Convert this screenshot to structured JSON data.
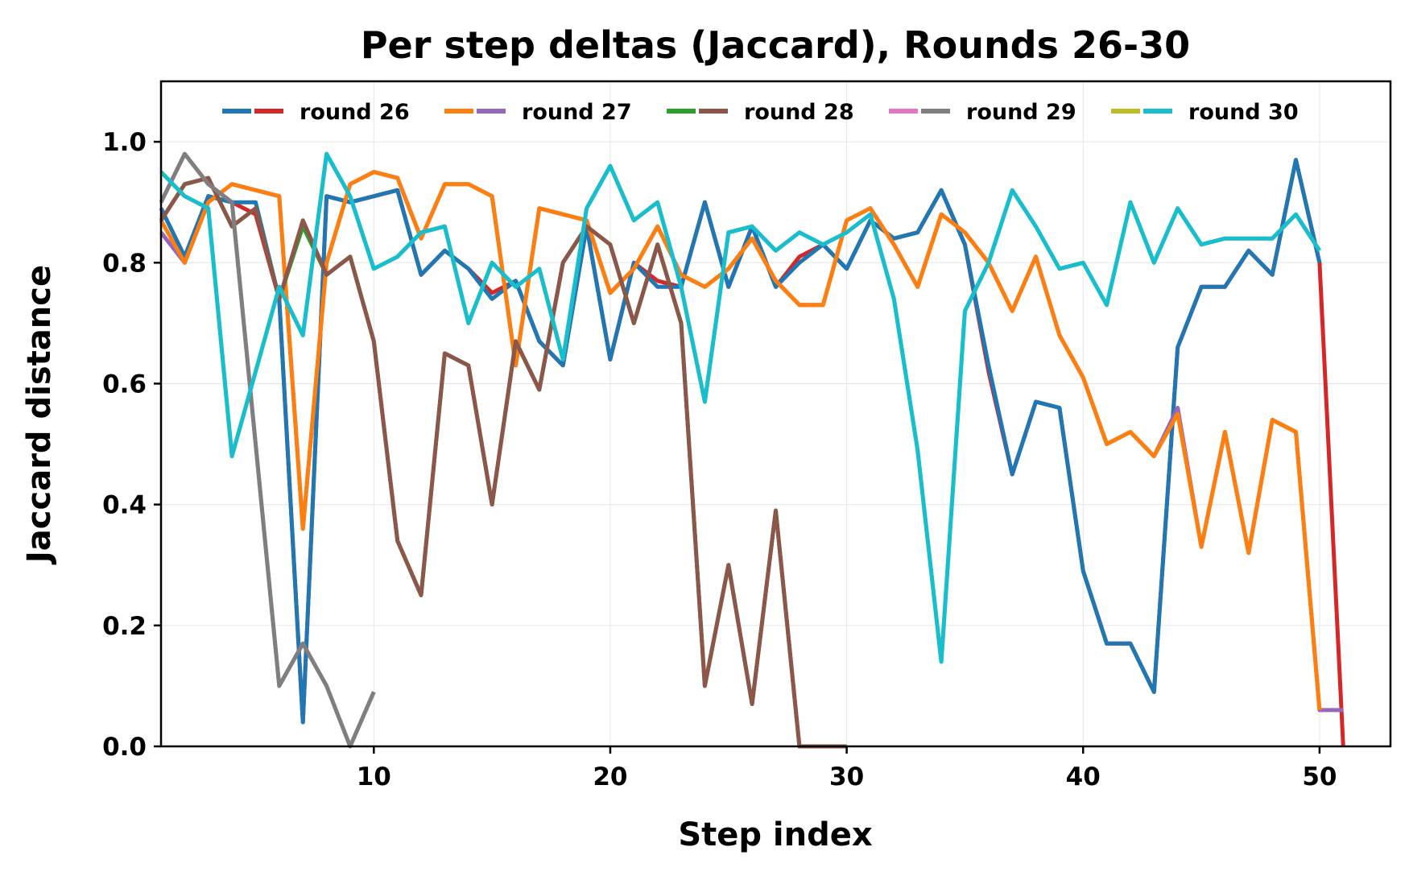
{
  "chart_data": {
    "type": "line",
    "title": "Per step deltas (Jaccard), Rounds 26-30",
    "xlabel": "Step index",
    "ylabel": "Jaccard distance",
    "xlim": [
      1,
      53
    ],
    "ylim": [
      0,
      1.1
    ],
    "xticks": [
      10,
      20,
      30,
      40,
      50
    ],
    "yticks": [
      0.0,
      0.2,
      0.4,
      0.6,
      0.8,
      1.0
    ],
    "grid": true,
    "legend_position": "top",
    "legend": [
      {
        "label": "round 26",
        "colors": [
          "#1f77b4",
          "#d62728"
        ]
      },
      {
        "label": "round 27",
        "colors": [
          "#ff7f0e",
          "#9467bd"
        ]
      },
      {
        "label": "round 28",
        "colors": [
          "#2ca02c",
          "#8c564b"
        ]
      },
      {
        "label": "round 29",
        "colors": [
          "#e377c2",
          "#7f7f7f"
        ]
      },
      {
        "label": "round 30",
        "colors": [
          "#bcbd22",
          "#17becf"
        ]
      }
    ],
    "series": [
      {
        "color": "#d62728",
        "x_start": 1,
        "values": [
          0.89,
          0.81,
          0.91,
          0.9,
          0.88,
          0.74,
          0.04,
          0.91,
          0.9,
          0.91,
          0.92,
          0.78,
          0.82,
          0.79,
          0.75,
          0.77,
          0.67,
          0.63,
          0.86,
          0.64,
          0.8,
          0.77,
          0.76,
          0.9,
          0.76,
          0.86,
          0.76,
          0.81,
          0.83,
          0.79,
          0.87,
          0.84,
          0.85,
          0.92,
          0.83,
          0.62,
          0.45,
          0.57,
          0.56,
          0.29,
          0.17,
          0.17,
          0.09,
          0.66,
          0.76,
          0.76,
          0.82,
          0.78,
          0.97,
          0.8,
          0.0
        ]
      },
      {
        "color": "#1f77b4",
        "x_start": 1,
        "values": [
          0.89,
          0.81,
          0.91,
          0.9,
          0.9,
          0.74,
          0.04,
          0.91,
          0.9,
          0.91,
          0.92,
          0.78,
          0.82,
          0.79,
          0.74,
          0.77,
          0.67,
          0.63,
          0.86,
          0.64,
          0.8,
          0.76,
          0.76,
          0.9,
          0.76,
          0.86,
          0.76,
          0.8,
          0.83,
          0.79,
          0.87,
          0.84,
          0.85,
          0.92,
          0.83,
          0.63,
          0.45,
          0.57,
          0.56,
          0.29,
          0.17,
          0.17,
          0.09,
          0.66,
          0.76,
          0.76,
          0.82,
          0.78,
          0.97,
          0.8
        ]
      },
      {
        "color": "#9467bd",
        "x_start": 1,
        "values": [
          0.85,
          0.8,
          0.9,
          0.93,
          0.92,
          0.91,
          0.36,
          0.8,
          0.93,
          0.95,
          0.94,
          0.84,
          0.93,
          0.93,
          0.91,
          0.63,
          0.89,
          0.88,
          0.87,
          0.75,
          0.79,
          0.86,
          0.78,
          0.76,
          0.79,
          0.84,
          0.77,
          0.73,
          0.73,
          0.87,
          0.89,
          0.83,
          0.76,
          0.88,
          0.85,
          0.8,
          0.72,
          0.81,
          0.68,
          0.61,
          0.5,
          0.52,
          0.48,
          0.56,
          0.33,
          0.52,
          0.32,
          0.54,
          0.52,
          0.06,
          0.06
        ]
      },
      {
        "color": "#ff7f0e",
        "x_start": 1,
        "values": [
          0.87,
          0.8,
          0.9,
          0.93,
          0.92,
          0.91,
          0.36,
          0.8,
          0.93,
          0.95,
          0.94,
          0.84,
          0.93,
          0.93,
          0.91,
          0.63,
          0.89,
          0.88,
          0.87,
          0.75,
          0.79,
          0.86,
          0.78,
          0.76,
          0.79,
          0.84,
          0.77,
          0.73,
          0.73,
          0.87,
          0.89,
          0.83,
          0.76,
          0.88,
          0.85,
          0.8,
          0.72,
          0.81,
          0.68,
          0.61,
          0.5,
          0.52,
          0.48,
          0.55,
          0.33,
          0.52,
          0.32,
          0.54,
          0.52,
          0.06
        ]
      },
      {
        "color": "#2ca02c",
        "x_start": 1,
        "values": [
          0.87,
          0.93,
          0.94,
          0.86,
          0.89,
          0.74,
          0.86,
          0.78,
          0.81,
          0.67,
          0.34,
          0.25,
          0.65,
          0.63,
          0.4,
          0.67,
          0.59,
          0.8,
          0.86,
          0.83,
          0.7,
          0.83,
          0.7,
          0.1,
          0.3,
          0.07,
          0.39,
          0.0,
          0.0,
          0.0
        ]
      },
      {
        "color": "#8c564b",
        "x_start": 1,
        "values": [
          0.87,
          0.93,
          0.94,
          0.86,
          0.89,
          0.74,
          0.87,
          0.78,
          0.81,
          0.67,
          0.34,
          0.25,
          0.65,
          0.63,
          0.4,
          0.67,
          0.59,
          0.8,
          0.86,
          0.83,
          0.7,
          0.83,
          0.7,
          0.1,
          0.3,
          0.07,
          0.39,
          0.0,
          0.0,
          0.0
        ]
      },
      {
        "color": "#e377c2",
        "x_start": 1,
        "values": [
          0.9,
          0.98,
          0.93,
          0.9,
          0.5,
          0.1,
          0.17,
          0.1,
          0.0,
          0.09
        ]
      },
      {
        "color": "#7f7f7f",
        "x_start": 1,
        "values": [
          0.9,
          0.98,
          0.93,
          0.9,
          0.5,
          0.1,
          0.17,
          0.1,
          0.0,
          0.09
        ]
      },
      {
        "color": "#bcbd22",
        "x_start": 1,
        "values": [
          0.95,
          0.91,
          0.89,
          0.48,
          0.62,
          0.76,
          0.68,
          0.98,
          0.91,
          0.79,
          0.81,
          0.85,
          0.86,
          0.7,
          0.8,
          0.76,
          0.79,
          0.64,
          0.89,
          0.96,
          0.87,
          0.9,
          0.76,
          0.57,
          0.85,
          0.86,
          0.82,
          0.85,
          0.83,
          0.85,
          0.88,
          0.74,
          0.49,
          0.14,
          0.72,
          0.8,
          0.92,
          0.86,
          0.79,
          0.8,
          0.73,
          0.9,
          0.8,
          0.89,
          0.83,
          0.84,
          0.84,
          0.84,
          0.88,
          0.82
        ]
      },
      {
        "color": "#17becf",
        "x_start": 1,
        "values": [
          0.95,
          0.91,
          0.89,
          0.48,
          0.62,
          0.76,
          0.68,
          0.98,
          0.91,
          0.79,
          0.81,
          0.85,
          0.86,
          0.7,
          0.8,
          0.76,
          0.79,
          0.64,
          0.89,
          0.96,
          0.87,
          0.9,
          0.76,
          0.57,
          0.85,
          0.86,
          0.82,
          0.85,
          0.83,
          0.85,
          0.88,
          0.74,
          0.49,
          0.14,
          0.72,
          0.8,
          0.92,
          0.86,
          0.79,
          0.8,
          0.73,
          0.9,
          0.8,
          0.89,
          0.83,
          0.84,
          0.84,
          0.84,
          0.88,
          0.82
        ]
      }
    ]
  }
}
